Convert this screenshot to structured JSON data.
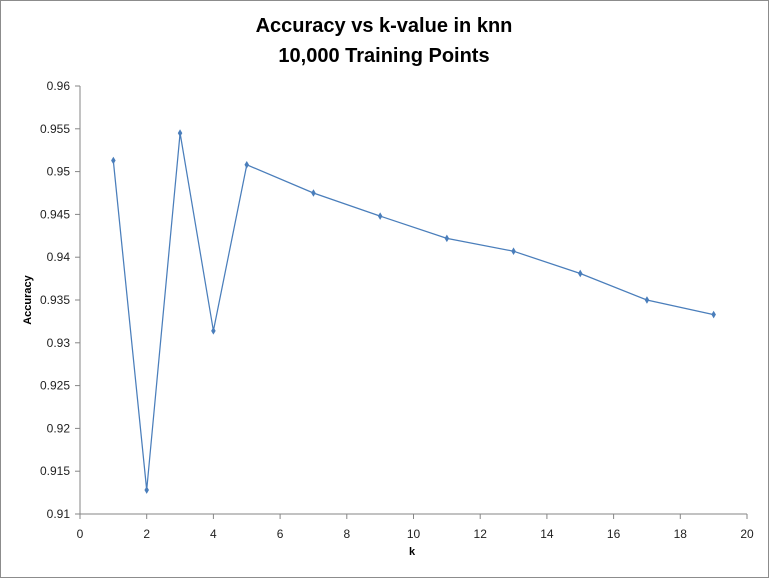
{
  "chart_data": {
    "type": "line",
    "title": [
      "Accuracy vs k-value in knn",
      "10,000 Training Points"
    ],
    "xlabel": "k",
    "ylabel": "Accuracy",
    "xlim": [
      0,
      20
    ],
    "ylim": [
      0.91,
      0.96
    ],
    "x_ticks": [
      "0",
      "2",
      "4",
      "6",
      "8",
      "10",
      "12",
      "14",
      "16",
      "18",
      "20"
    ],
    "y_ticks": [
      "0.91",
      "0.915",
      "0.92",
      "0.925",
      "0.93",
      "0.935",
      "0.94",
      "0.945",
      "0.95",
      "0.955",
      "0.96"
    ],
    "grid": false,
    "legend": "none",
    "series": [
      {
        "color": "#4a7ebb",
        "x": [
          1,
          2,
          3,
          4,
          5,
          7,
          9,
          11,
          13,
          15,
          17,
          19
        ],
        "y": [
          0.9513,
          0.9128,
          0.9545,
          0.9314,
          0.9508,
          0.9475,
          0.9448,
          0.9422,
          0.9407,
          0.9381,
          0.935,
          0.9333
        ]
      }
    ]
  }
}
